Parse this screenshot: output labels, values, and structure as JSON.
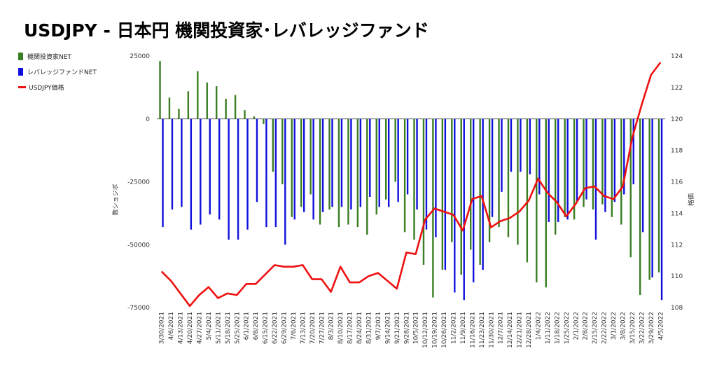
{
  "title": "USDJPY - 日本円 機関投資家･レバレッジファンド",
  "colors": {
    "institutional": "#3a7d22",
    "leveraged": "#1010dd",
    "price": "#ee1111"
  },
  "chart_data": {
    "type": "bar",
    "title": "USDJPY - 日本円 機関投資家･レバレッジファンド",
    "ylabel": "数ショジボ",
    "y2label": "格価",
    "ylim": [
      -75000,
      25000
    ],
    "y_ticks": [
      25000,
      0,
      -25000,
      -50000,
      -75000
    ],
    "y_tick_labels": [
      "25000",
      "0",
      "-25000",
      "-50000",
      "-75000"
    ],
    "y2lim": [
      108,
      124
    ],
    "y2_ticks": [
      124,
      122,
      120,
      118,
      116,
      114,
      112,
      110,
      108
    ],
    "legend_position": "left",
    "grid": false,
    "x": [
      "3/30/2021",
      "4/6/2021",
      "4/13/2021",
      "4/20/2021",
      "4/27/2021",
      "5/4/2021",
      "5/11/2021",
      "5/18/2021",
      "5/25/2021",
      "6/1/2021",
      "6/8/2021",
      "6/15/2021",
      "6/22/2021",
      "6/29/2021",
      "7/6/2021",
      "7/13/2021",
      "7/20/2021",
      "7/27/2021",
      "8/3/2021",
      "8/10/2021",
      "8/17/2021",
      "8/24/2021",
      "8/31/2021",
      "9/7/2021",
      "9/14/2021",
      "9/21/2021",
      "9/28/2021",
      "10/5/2021",
      "10/12/2021",
      "10/19/2021",
      "10/26/2021",
      "11/2/2021",
      "11/9/2021",
      "11/16/2021",
      "11/23/2021",
      "11/30/2021",
      "12/7/2021",
      "12/14/2021",
      "12/21/2021",
      "12/28/2021",
      "1/4/2022",
      "1/11/2022",
      "1/18/2022",
      "1/25/2022",
      "2/1/2022",
      "2/8/2022",
      "2/15/2022",
      "2/22/2022",
      "3/1/2022",
      "3/8/2022",
      "3/15/2022",
      "3/22/2022",
      "3/29/2022",
      "4/5/2022"
    ],
    "series": [
      {
        "name": "機関投資家NET",
        "type": "bar",
        "values": [
          23000,
          8500,
          4000,
          11000,
          19000,
          14500,
          13000,
          8000,
          9500,
          3500,
          1000,
          -2000,
          -21000,
          -26000,
          -39000,
          -35000,
          -30000,
          -42000,
          -36000,
          -43000,
          -42000,
          -43000,
          -46000,
          -38000,
          -32000,
          -25000,
          -45000,
          -48000,
          -58000,
          -71000,
          -60000,
          -49000,
          -62000,
          -52000,
          -58000,
          -49000,
          -43000,
          -47000,
          -50000,
          -57000,
          -65000,
          -67000,
          -46000,
          -39000,
          -40000,
          -35000,
          -36000,
          -34000,
          -39000,
          -42000,
          -55000,
          -70000,
          -64000,
          -61000
        ]
      },
      {
        "name": "レバレッジファンドNET",
        "type": "bar",
        "values": [
          -43000,
          -36000,
          -35000,
          -44000,
          -42000,
          -38000,
          -40000,
          -48000,
          -48000,
          -44000,
          -33000,
          -43000,
          -43000,
          -50000,
          -40000,
          -37000,
          -40000,
          -37000,
          -35000,
          -35000,
          -36000,
          -35000,
          -31000,
          -35000,
          -35000,
          -33000,
          -30000,
          -36000,
          -44000,
          -47000,
          -60000,
          -69000,
          -72000,
          -65000,
          -60000,
          -39000,
          -29000,
          -21000,
          -21000,
          -22000,
          -30000,
          -41000,
          -41000,
          -40000,
          -33000,
          -32000,
          -48000,
          -37000,
          -33000,
          -30000,
          -26000,
          -45000,
          -63000,
          -72000
        ]
      },
      {
        "name": "USDJPY価格",
        "type": "line",
        "axis": "right",
        "values": [
          110.3,
          109.7,
          108.9,
          108.1,
          108.8,
          109.3,
          108.6,
          108.9,
          108.8,
          109.5,
          109.5,
          110.1,
          110.7,
          110.6,
          110.6,
          110.7,
          109.8,
          109.8,
          109.0,
          110.6,
          109.6,
          109.6,
          110.0,
          110.2,
          109.7,
          109.2,
          111.5,
          111.4,
          113.6,
          114.3,
          114.1,
          113.9,
          112.9,
          114.9,
          115.1,
          113.1,
          113.5,
          113.7,
          114.1,
          114.8,
          116.2,
          115.3,
          114.7,
          113.8,
          114.6,
          115.6,
          115.7,
          115.1,
          114.9,
          115.7,
          118.8,
          120.9,
          122.8,
          123.6
        ]
      }
    ]
  },
  "legend": [
    {
      "label": "機関投資家NET",
      "kind": "bar",
      "color": "#3a7d22"
    },
    {
      "label": "レバレッジファンドNET",
      "kind": "bar",
      "color": "#1010dd"
    },
    {
      "label": "USDJPY価格",
      "kind": "line",
      "color": "#ee1111"
    }
  ]
}
